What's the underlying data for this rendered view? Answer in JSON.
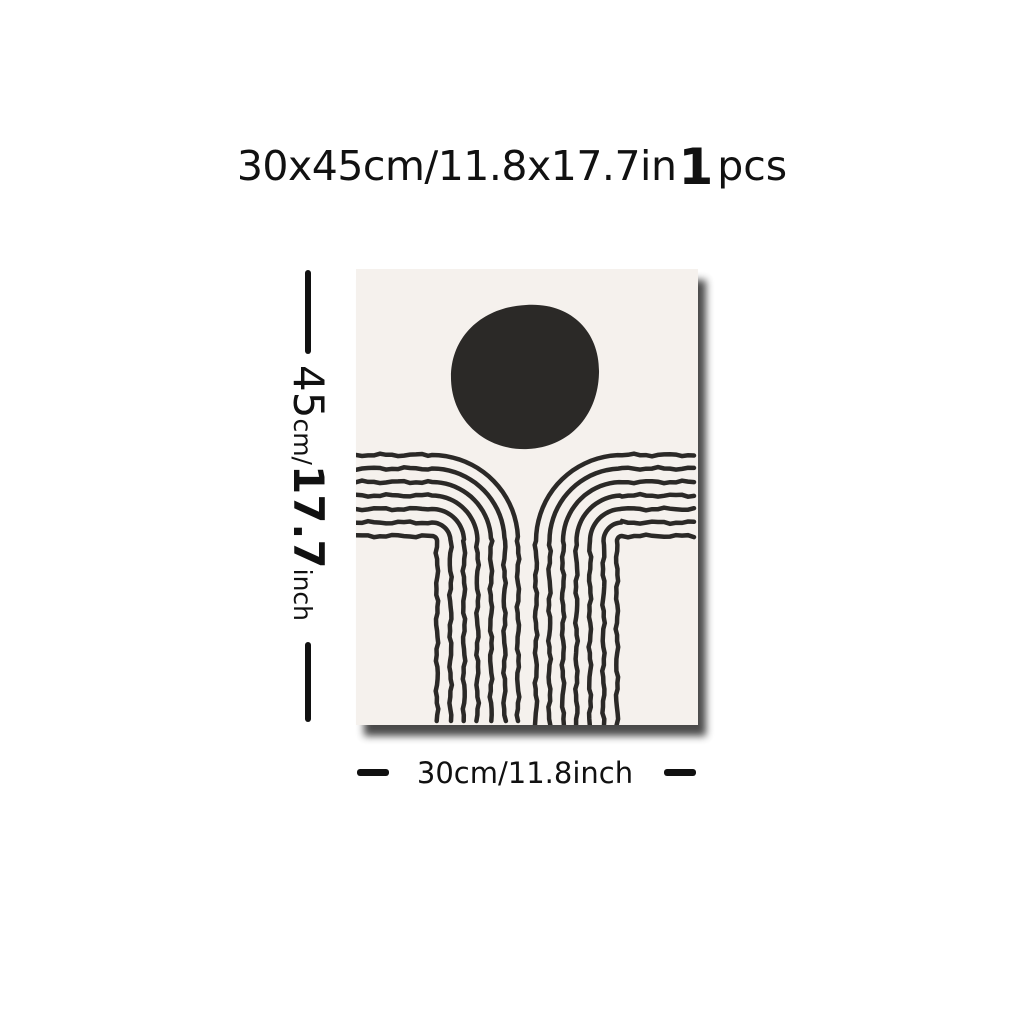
{
  "header": {
    "size_text": "30x45cm/11.8x17.7in",
    "quantity": "1",
    "quantity_unit": "pcs"
  },
  "dimensions": {
    "height_number": "45",
    "height_unit": "cm/",
    "height_inch_number": "17.7",
    "height_inch_unit": "inch",
    "width_label": "30cm/11.8inch"
  },
  "artwork": {
    "subject": "abstract sun and rainbow arches",
    "background_color": "#f5f1ed",
    "ink_color": "#2b2927",
    "arch_line_count": 7
  }
}
